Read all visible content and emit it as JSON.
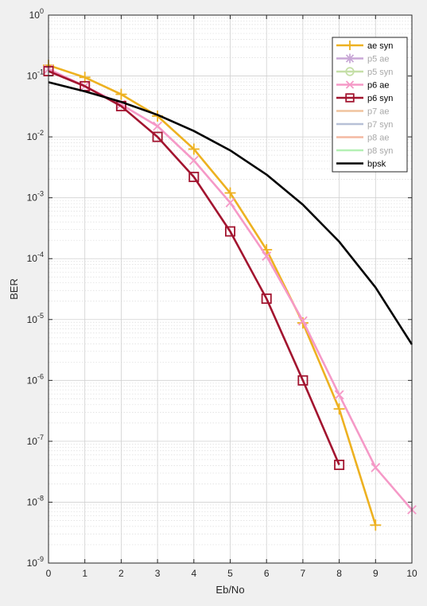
{
  "chart_data": {
    "type": "line",
    "title": "",
    "xlabel": "Eb/No",
    "ylabel": "BER",
    "xlim": [
      0,
      10
    ],
    "ylim_exp": [
      -9,
      0
    ],
    "yscale": "log",
    "grid": true,
    "minor_grid": true,
    "legend_position": "top-right",
    "x_ticks": [
      "0",
      "1",
      "2",
      "3",
      "4",
      "5",
      "6",
      "7",
      "8",
      "9",
      "10"
    ],
    "y_ticks": [
      {
        "base": "10",
        "exp": "0"
      },
      {
        "base": "10",
        "exp": "-1"
      },
      {
        "base": "10",
        "exp": "-2"
      },
      {
        "base": "10",
        "exp": "-3"
      },
      {
        "base": "10",
        "exp": "-4"
      },
      {
        "base": "10",
        "exp": "-5"
      },
      {
        "base": "10",
        "exp": "-6"
      },
      {
        "base": "10",
        "exp": "-7"
      },
      {
        "base": "10",
        "exp": "-8"
      },
      {
        "base": "10",
        "exp": "-9"
      }
    ],
    "series": [
      {
        "name": "ae syn",
        "color": "#EDB120",
        "marker": "plus",
        "faded": false,
        "x": [
          0,
          1,
          2,
          3,
          4,
          5,
          6,
          7,
          8,
          9
        ],
        "y": [
          0.15,
          0.095,
          0.05,
          0.022,
          0.0063,
          0.0012,
          0.00014,
          8.8e-06,
          3.4e-07,
          4.2e-09
        ]
      },
      {
        "name": "p5 ae",
        "color": "#C9A7D6",
        "marker": "star",
        "faded": true,
        "x": [],
        "y": []
      },
      {
        "name": "p5 syn",
        "color": "#C5DFA8",
        "marker": "circle",
        "faded": true,
        "x": [],
        "y": []
      },
      {
        "name": "p6 ae",
        "color": "#F599C7",
        "marker": "x",
        "faded": false,
        "x": [
          0,
          1,
          2,
          3,
          4,
          5,
          6,
          7,
          8,
          9,
          10
        ],
        "y": [
          0.13,
          0.068,
          0.034,
          0.015,
          0.0041,
          0.00083,
          0.00011,
          9.5e-06,
          5.8e-07,
          3.7e-08,
          7.5e-09
        ]
      },
      {
        "name": "p6 syn",
        "color": "#A2142F",
        "marker": "square",
        "faded": false,
        "x": [
          0,
          1,
          2,
          3,
          4,
          5,
          6,
          7,
          8
        ],
        "y": [
          0.12,
          0.068,
          0.032,
          0.01,
          0.0022,
          0.00028,
          2.2e-05,
          1e-06,
          4.1e-08
        ]
      },
      {
        "name": "p7 ae",
        "color": "#F0C49E",
        "marker": "none",
        "faded": true,
        "x": [],
        "y": []
      },
      {
        "name": "p7 syn",
        "color": "#B7C0D6",
        "marker": "none",
        "faded": true,
        "x": [],
        "y": []
      },
      {
        "name": "p8 ae",
        "color": "#F4B9A2",
        "marker": "none",
        "faded": true,
        "x": [],
        "y": []
      },
      {
        "name": "p8 syn",
        "color": "#B4F0B4",
        "marker": "none",
        "faded": true,
        "x": [],
        "y": []
      },
      {
        "name": "bpsk",
        "color": "#000000",
        "marker": "none",
        "faded": false,
        "x": [
          0,
          1,
          2,
          3,
          4,
          5,
          6,
          7,
          8,
          9,
          10
        ],
        "y": [
          0.079,
          0.056,
          0.0375,
          0.023,
          0.0125,
          0.006,
          0.0024,
          0.00077,
          0.00019,
          3.36e-05,
          3.9e-06
        ]
      }
    ]
  }
}
